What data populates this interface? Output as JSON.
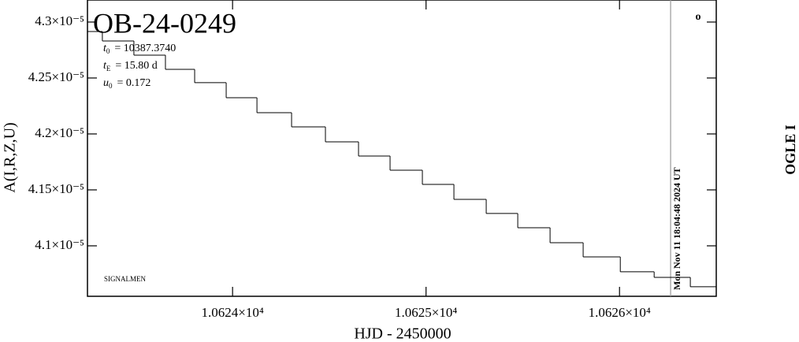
{
  "chart_data": {
    "type": "line",
    "drawstyle": "steps-post",
    "title": "OB-24-0249",
    "params": [
      {
        "symbol": "t",
        "sub": "0",
        "value": "= 10387.3740"
      },
      {
        "symbol": "t",
        "sub": "E",
        "value": "= 15.80 d"
      },
      {
        "symbol": "u",
        "sub": "0",
        "value": "= 0.172"
      }
    ],
    "xlabel": "HJD - 2450000",
    "ylabel": "A(I,R,Z,U)",
    "right_label": "OGLE I",
    "corner_mark": "o",
    "footnote": "SIGNALMEN",
    "vline": {
      "x": 10626.264,
      "label": "Mon Nov 11 18:04:48 2024 UT",
      "color": "#999999"
    },
    "x": [
      10623.25,
      10623.327,
      10623.49,
      10623.653,
      10623.804,
      10623.967,
      10624.126,
      10624.305,
      10624.48,
      10624.651,
      10624.814,
      10624.981,
      10625.144,
      10625.311,
      10625.474,
      10625.641,
      10625.812,
      10626.004,
      10626.179,
      10626.366
    ],
    "values": [
      4.2915e-05,
      4.2831e-05,
      4.2704e-05,
      4.2577e-05,
      4.2458e-05,
      4.2324e-05,
      4.219e-05,
      4.2063e-05,
      4.1929e-05,
      4.1803e-05,
      4.1676e-05,
      4.1549e-05,
      4.1415e-05,
      4.1289e-05,
      4.1162e-05,
      4.1028e-05,
      4.0901e-05,
      4.0768e-05,
      4.0718e-05,
      4.0634e-05
    ],
    "color": "#000000",
    "xlim": [
      10623.25,
      10626.5
    ],
    "ylim": [
      4.0549e-05,
      4.3197e-05
    ],
    "xticks": [
      {
        "value": 10624,
        "label": "1.0624×10⁴"
      },
      {
        "value": 10625,
        "label": "1.0625×10⁴"
      },
      {
        "value": 10626,
        "label": "1.0626×10⁴"
      }
    ],
    "yticks": [
      {
        "value": 4.1e-05,
        "label": "4.1×10⁻⁵"
      },
      {
        "value": 4.15e-05,
        "label": "4.15×10⁻⁵"
      },
      {
        "value": 4.2e-05,
        "label": "4.2×10⁻⁵"
      },
      {
        "value": 4.25e-05,
        "label": "4.25×10⁻⁵"
      },
      {
        "value": 4.3e-05,
        "label": "4.3×10⁻⁵"
      }
    ]
  }
}
